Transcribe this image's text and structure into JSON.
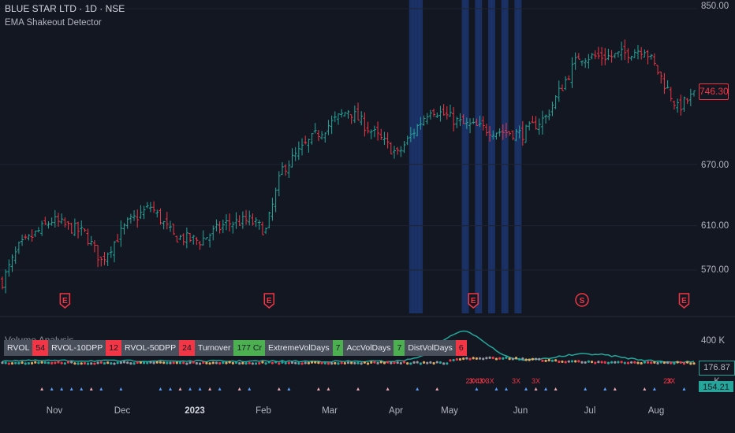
{
  "header": {
    "title": "BLUE STAR LTD · 1D · NSE",
    "indicator": "EMA Shakeout Detector"
  },
  "colors": {
    "background": "#131722",
    "up": "#26a69a",
    "down": "#f23645",
    "highlight_band": "#1e3a78",
    "grid": "#1f2330"
  },
  "price_axis": {
    "ticks": [
      "850.00",
      "670.00",
      "610.00",
      "570.00"
    ],
    "last_price": "746.30"
  },
  "volume_panel": {
    "label": "Volume Analysis",
    "axis_top": "400 K",
    "current_avg": "176.87 K",
    "current_vol": "154.21 K",
    "table": [
      {
        "label": "RVOL",
        "value": "54",
        "color": "red"
      },
      {
        "label": "RVOL-10DPP",
        "value": "12",
        "color": "red"
      },
      {
        "label": "RVOL-50DPP",
        "value": "24",
        "color": "red"
      },
      {
        "label": "Turnover",
        "value": "177 Cr",
        "color": "green"
      },
      {
        "label": "ExtremeVolDays",
        "value": "7",
        "color": "green"
      },
      {
        "label": "AccVolDays",
        "value": "7",
        "color": "green"
      },
      {
        "label": "DistVolDays",
        "value": "6",
        "color": "red"
      }
    ],
    "multiplier_labels": [
      "2X",
      "3X",
      "4X",
      "3X",
      "3X",
      "3X",
      "3X",
      "2X",
      "3X"
    ]
  },
  "x_axis": {
    "ticks": [
      {
        "label": "Nov",
        "bold": false
      },
      {
        "label": "Dec",
        "bold": false
      },
      {
        "label": "2023",
        "bold": true
      },
      {
        "label": "Feb",
        "bold": false
      },
      {
        "label": "Mar",
        "bold": false
      },
      {
        "label": "Apr",
        "bold": false
      },
      {
        "label": "May",
        "bold": false
      },
      {
        "label": "Jun",
        "bold": false
      },
      {
        "label": "Jul",
        "bold": false
      },
      {
        "label": "Aug",
        "bold": false
      }
    ]
  },
  "chart_data": {
    "type": "candlestick",
    "yscale": "log",
    "ylim": [
      545,
      860
    ],
    "bars": 211,
    "start_date": "2022-10-17",
    "anchors": [
      [
        0,
        560
      ],
      [
        5,
        590
      ],
      [
        15,
        615
      ],
      [
        25,
        603
      ],
      [
        30,
        578
      ],
      [
        38,
        612
      ],
      [
        45,
        628
      ],
      [
        52,
        600
      ],
      [
        60,
        596
      ],
      [
        68,
        612
      ],
      [
        75,
        615
      ],
      [
        80,
        605
      ],
      [
        85,
        665
      ],
      [
        95,
        700
      ],
      [
        105,
        728
      ],
      [
        112,
        705
      ],
      [
        120,
        680
      ],
      [
        130,
        730
      ],
      [
        140,
        712
      ],
      [
        150,
        705
      ],
      [
        158,
        702
      ],
      [
        165,
        720
      ],
      [
        175,
        790
      ],
      [
        185,
        790
      ],
      [
        195,
        800
      ],
      [
        205,
        730
      ],
      [
        210,
        745
      ]
    ],
    "shakeout_markers": [
      {
        "label": "E",
        "bar_index": 19
      },
      {
        "label": "E",
        "bar_index": 81
      },
      {
        "label": "E",
        "bar_index": 143
      },
      {
        "label": "S",
        "bar_index": 176
      },
      {
        "label": "E",
        "bar_index": 207
      }
    ],
    "highlight_bars": [
      124,
      125,
      126,
      127,
      140,
      141,
      144,
      145,
      148,
      149,
      152,
      153,
      156,
      157
    ]
  }
}
